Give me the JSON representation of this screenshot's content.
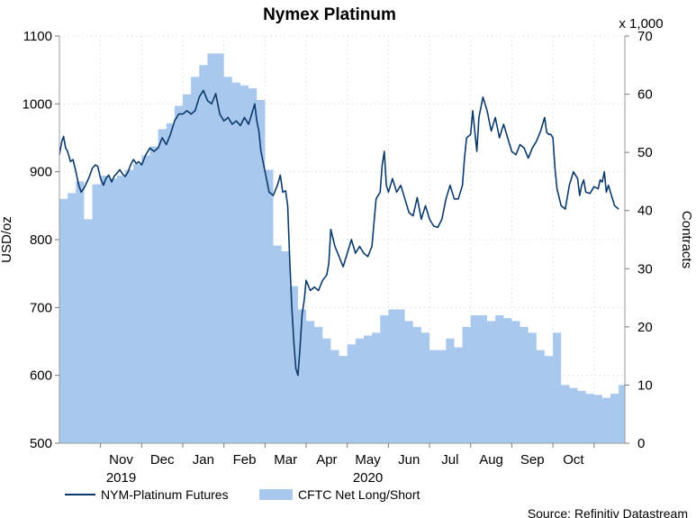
{
  "chart_data": {
    "type": "line",
    "title": "Nymex Platinum",
    "ylabel": "USD/oz",
    "y2label": "Contracts",
    "y2_multiplier_label": "x 1,000",
    "source": "Source: Refinitiv Datastream",
    "ylim": [
      500,
      1100
    ],
    "y2lim": [
      0,
      70
    ],
    "yticks": [
      500,
      600,
      700,
      800,
      900,
      1000,
      1100
    ],
    "y2ticks": [
      0,
      10,
      20,
      30,
      40,
      50,
      60,
      70
    ],
    "grid": true,
    "legend_position": "bottom-left",
    "x_month_labels": [
      {
        "label": "Nov",
        "pos": 1.5
      },
      {
        "label": "Dec",
        "pos": 2.5
      },
      {
        "label": "Jan",
        "pos": 3.5
      },
      {
        "label": "Feb",
        "pos": 4.5
      },
      {
        "label": "Mar",
        "pos": 5.5
      },
      {
        "label": "Apr",
        "pos": 6.5
      },
      {
        "label": "May",
        "pos": 7.5
      },
      {
        "label": "Jun",
        "pos": 8.5
      },
      {
        "label": "Jul",
        "pos": 9.5
      },
      {
        "label": "Aug",
        "pos": 10.5
      },
      {
        "label": "Sep",
        "pos": 11.5
      },
      {
        "label": "Oct",
        "pos": 12.5
      }
    ],
    "x_year_labels": [
      {
        "label": "2019",
        "pos": 1.5
      },
      {
        "label": "2020",
        "pos": 7.5
      }
    ],
    "x_month_boundaries": [
      1,
      2,
      3,
      4,
      5,
      6,
      7,
      8,
      9,
      10,
      11,
      12,
      13
    ],
    "series": [
      {
        "name": "NYM-Platinum Futures",
        "type": "line",
        "axis": "left",
        "color": "#0b3a6b",
        "points": [
          [
            0.0,
            925
          ],
          [
            0.06,
            945
          ],
          [
            0.1,
            952
          ],
          [
            0.15,
            935
          ],
          [
            0.2,
            930
          ],
          [
            0.27,
            915
          ],
          [
            0.33,
            918
          ],
          [
            0.4,
            900
          ],
          [
            0.47,
            880
          ],
          [
            0.53,
            870
          ],
          [
            0.6,
            876
          ],
          [
            0.67,
            885
          ],
          [
            0.73,
            893
          ],
          [
            0.8,
            905
          ],
          [
            0.87,
            910
          ],
          [
            0.93,
            908
          ],
          [
            1.0,
            890
          ],
          [
            1.07,
            880
          ],
          [
            1.13,
            890
          ],
          [
            1.2,
            895
          ],
          [
            1.27,
            885
          ],
          [
            1.33,
            893
          ],
          [
            1.4,
            898
          ],
          [
            1.47,
            903
          ],
          [
            1.53,
            897
          ],
          [
            1.6,
            893
          ],
          [
            1.67,
            900
          ],
          [
            1.73,
            910
          ],
          [
            1.8,
            918
          ],
          [
            1.87,
            912
          ],
          [
            1.93,
            915
          ],
          [
            2.0,
            910
          ],
          [
            2.1,
            925
          ],
          [
            2.2,
            935
          ],
          [
            2.3,
            930
          ],
          [
            2.4,
            935
          ],
          [
            2.5,
            950
          ],
          [
            2.6,
            940
          ],
          [
            2.7,
            955
          ],
          [
            2.8,
            975
          ],
          [
            2.9,
            985
          ],
          [
            3.0,
            985
          ],
          [
            3.1,
            990
          ],
          [
            3.2,
            985
          ],
          [
            3.3,
            990
          ],
          [
            3.4,
            1010
          ],
          [
            3.5,
            1020
          ],
          [
            3.6,
            1005
          ],
          [
            3.7,
            1000
          ],
          [
            3.8,
            1015
          ],
          [
            3.9,
            985
          ],
          [
            4.0,
            975
          ],
          [
            4.1,
            980
          ],
          [
            4.2,
            970
          ],
          [
            4.3,
            975
          ],
          [
            4.4,
            968
          ],
          [
            4.5,
            980
          ],
          [
            4.6,
            970
          ],
          [
            4.7,
            990
          ],
          [
            4.75,
            1000
          ],
          [
            4.8,
            975
          ],
          [
            4.85,
            960
          ],
          [
            4.9,
            930
          ],
          [
            5.0,
            900
          ],
          [
            5.1,
            870
          ],
          [
            5.2,
            865
          ],
          [
            5.3,
            880
          ],
          [
            5.37,
            895
          ],
          [
            5.43,
            870
          ],
          [
            5.5,
            872
          ],
          [
            5.55,
            850
          ],
          [
            5.6,
            770
          ],
          [
            5.65,
            700
          ],
          [
            5.7,
            650
          ],
          [
            5.75,
            610
          ],
          [
            5.8,
            600
          ],
          [
            5.85,
            640
          ],
          [
            5.9,
            690
          ],
          [
            5.95,
            710
          ],
          [
            6.0,
            740
          ],
          [
            6.1,
            725
          ],
          [
            6.2,
            730
          ],
          [
            6.3,
            725
          ],
          [
            6.4,
            740
          ],
          [
            6.5,
            748
          ],
          [
            6.55,
            765
          ],
          [
            6.6,
            815
          ],
          [
            6.7,
            790
          ],
          [
            6.8,
            775
          ],
          [
            6.9,
            760
          ],
          [
            7.0,
            780
          ],
          [
            7.1,
            800
          ],
          [
            7.2,
            780
          ],
          [
            7.3,
            790
          ],
          [
            7.4,
            780
          ],
          [
            7.5,
            775
          ],
          [
            7.6,
            790
          ],
          [
            7.7,
            860
          ],
          [
            7.8,
            870
          ],
          [
            7.85,
            910
          ],
          [
            7.9,
            930
          ],
          [
            7.95,
            880
          ],
          [
            8.0,
            870
          ],
          [
            8.1,
            890
          ],
          [
            8.2,
            870
          ],
          [
            8.3,
            880
          ],
          [
            8.4,
            860
          ],
          [
            8.5,
            840
          ],
          [
            8.6,
            835
          ],
          [
            8.7,
            862
          ],
          [
            8.8,
            830
          ],
          [
            8.9,
            850
          ],
          [
            9.0,
            830
          ],
          [
            9.1,
            820
          ],
          [
            9.2,
            818
          ],
          [
            9.3,
            830
          ],
          [
            9.4,
            860
          ],
          [
            9.5,
            880
          ],
          [
            9.6,
            860
          ],
          [
            9.7,
            860
          ],
          [
            9.8,
            880
          ],
          [
            9.85,
            920
          ],
          [
            9.9,
            950
          ],
          [
            10.0,
            955
          ],
          [
            10.05,
            990
          ],
          [
            10.1,
            960
          ],
          [
            10.15,
            930
          ],
          [
            10.2,
            980
          ],
          [
            10.3,
            1010
          ],
          [
            10.4,
            990
          ],
          [
            10.5,
            960
          ],
          [
            10.6,
            980
          ],
          [
            10.7,
            950
          ],
          [
            10.8,
            970
          ],
          [
            10.9,
            950
          ],
          [
            11.0,
            930
          ],
          [
            11.1,
            925
          ],
          [
            11.2,
            940
          ],
          [
            11.3,
            935
          ],
          [
            11.4,
            920
          ],
          [
            11.5,
            935
          ],
          [
            11.6,
            945
          ],
          [
            11.7,
            960
          ],
          [
            11.8,
            980
          ],
          [
            11.85,
            958
          ],
          [
            11.9,
            955
          ],
          [
            11.95,
            955
          ],
          [
            12.0,
            950
          ],
          [
            12.05,
            905
          ],
          [
            12.1,
            875
          ],
          [
            12.2,
            850
          ],
          [
            12.3,
            845
          ],
          [
            12.4,
            880
          ],
          [
            12.5,
            900
          ],
          [
            12.6,
            890
          ],
          [
            12.65,
            865
          ],
          [
            12.7,
            880
          ],
          [
            12.75,
            888
          ],
          [
            12.8,
            870
          ],
          [
            12.9,
            868
          ],
          [
            13.0,
            878
          ],
          [
            13.1,
            875
          ],
          [
            13.15,
            888
          ],
          [
            13.2,
            885
          ],
          [
            13.25,
            900
          ],
          [
            13.3,
            870
          ],
          [
            13.35,
            880
          ],
          [
            13.4,
            870
          ],
          [
            13.5,
            850
          ],
          [
            13.6,
            845
          ]
        ]
      },
      {
        "name": "CFTC Net Long/Short",
        "type": "area",
        "axis": "right",
        "color": "#a8c8ee",
        "points": [
          [
            0.0,
            42
          ],
          [
            0.2,
            43
          ],
          [
            0.4,
            45
          ],
          [
            0.6,
            38.5
          ],
          [
            0.8,
            44.5
          ],
          [
            1.0,
            46
          ],
          [
            1.2,
            45.5
          ],
          [
            1.4,
            46
          ],
          [
            1.6,
            47
          ],
          [
            1.8,
            48
          ],
          [
            2.0,
            49.5
          ],
          [
            2.2,
            51
          ],
          [
            2.4,
            54
          ],
          [
            2.6,
            55
          ],
          [
            2.8,
            58
          ],
          [
            3.0,
            60
          ],
          [
            3.2,
            63
          ],
          [
            3.4,
            65
          ],
          [
            3.6,
            67
          ],
          [
            3.8,
            67
          ],
          [
            4.0,
            63
          ],
          [
            4.2,
            62
          ],
          [
            4.4,
            61.5
          ],
          [
            4.6,
            61
          ],
          [
            4.8,
            59
          ],
          [
            5.0,
            47
          ],
          [
            5.2,
            34
          ],
          [
            5.4,
            33
          ],
          [
            5.6,
            27
          ],
          [
            5.8,
            23
          ],
          [
            6.0,
            21
          ],
          [
            6.2,
            20
          ],
          [
            6.4,
            18
          ],
          [
            6.6,
            16
          ],
          [
            6.8,
            15
          ],
          [
            7.0,
            17
          ],
          [
            7.2,
            18
          ],
          [
            7.4,
            18.5
          ],
          [
            7.6,
            19
          ],
          [
            7.8,
            22
          ],
          [
            8.0,
            23
          ],
          [
            8.2,
            23
          ],
          [
            8.4,
            21
          ],
          [
            8.6,
            20
          ],
          [
            8.8,
            19
          ],
          [
            9.0,
            16
          ],
          [
            9.2,
            16
          ],
          [
            9.4,
            18
          ],
          [
            9.6,
            16.5
          ],
          [
            9.8,
            20
          ],
          [
            10.0,
            22
          ],
          [
            10.2,
            22
          ],
          [
            10.4,
            21
          ],
          [
            10.6,
            22
          ],
          [
            10.8,
            21.5
          ],
          [
            11.0,
            21
          ],
          [
            11.2,
            20
          ],
          [
            11.4,
            19
          ],
          [
            11.6,
            16
          ],
          [
            11.8,
            15
          ],
          [
            12.0,
            19
          ],
          [
            12.2,
            10
          ],
          [
            12.4,
            9.5
          ],
          [
            12.6,
            9.0
          ],
          [
            12.8,
            8.5
          ],
          [
            13.0,
            8.3
          ],
          [
            13.2,
            7.8
          ],
          [
            13.4,
            8.5
          ],
          [
            13.6,
            10
          ]
        ]
      }
    ]
  }
}
